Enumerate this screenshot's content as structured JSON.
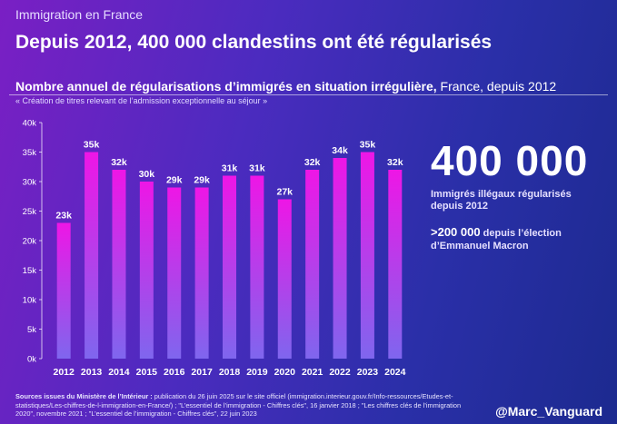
{
  "kicker": "Immigration en France",
  "headline": "Depuis 2012, 400 000 clandestins ont été régularisés",
  "subtitle_bold": "Nombre annuel de régularisations d’immigrés en situation irrégulière,",
  "subtitle_rest": " France, depuis 2012",
  "subnote": "« Création de titres relevant de l’admission exceptionnelle au séjour »",
  "big_number": "400 000",
  "big_caption": "Immigrés illégaux régularisés depuis 2012",
  "macron_highlight": ">200 000",
  "macron_rest": " depuis l’élection d’Emmanuel Macron",
  "sources_label": "Sources issues du Ministère de l’Intérieur :",
  "sources_text": " publication du 26 juin 2025 sur le site officiel (immigration.interieur.gouv.fr/Info-ressources/Etudes-et-statistiques/Les-chiffres-de-l-immigration-en-France/) ; \"L’essentiel de l’immigration - Chiffres clés\", 16 janvier 2018 ; \"Les chiffres clés de l’immigration 2020\", novembre 2021 ; \"L’essentiel de l’immigration - Chiffres clés\", 22 juin 2023",
  "handle": "@Marc_Vanguard",
  "colors": {
    "bar_top": "#ee16e6",
    "bar_bottom": "#7f66ee"
  },
  "chart_data": {
    "type": "bar",
    "categories": [
      "2012",
      "2013",
      "2014",
      "2015",
      "2016",
      "2017",
      "2018",
      "2019",
      "2020",
      "2021",
      "2022",
      "2023",
      "2024"
    ],
    "values": [
      23,
      35,
      32,
      30,
      29,
      29,
      31,
      31,
      27,
      32,
      34,
      35,
      32
    ],
    "value_labels": [
      "23k",
      "35k",
      "32k",
      "30k",
      "29k",
      "29k",
      "31k",
      "31k",
      "27k",
      "32k",
      "34k",
      "35k",
      "32k"
    ],
    "y_ticks": [
      "0k",
      "5k",
      "10k",
      "15k",
      "20k",
      "25k",
      "30k",
      "35k",
      "40k"
    ],
    "ylim": [
      0,
      40
    ],
    "unit": "k",
    "grid": false
  }
}
